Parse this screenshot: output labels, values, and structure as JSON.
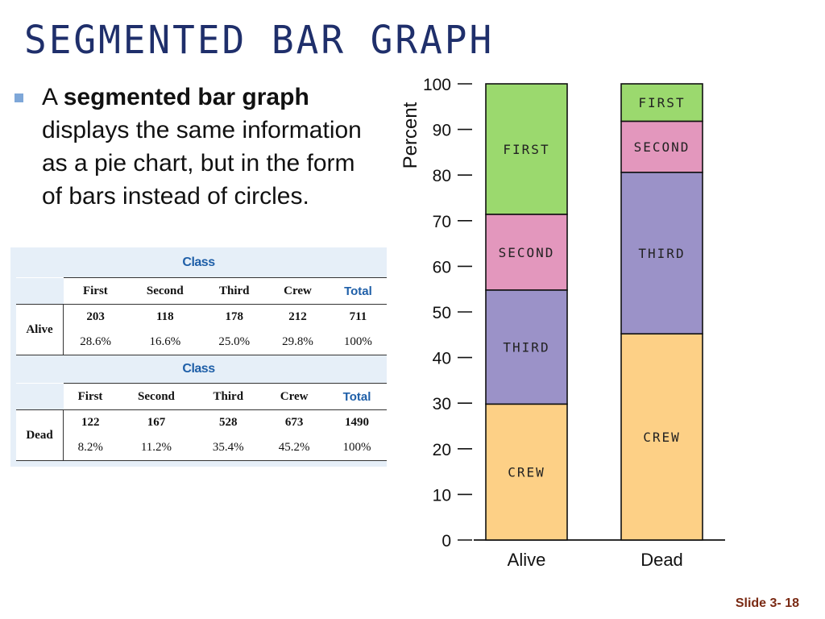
{
  "title": "SEGMENTED BAR GRAPH",
  "bullet": {
    "lead": "A ",
    "bold": "segmented bar graph",
    "rest": " displays the same information as a pie chart, but in the form of bars instead of circles."
  },
  "tables": [
    {
      "heading": "Class",
      "columns": [
        "First",
        "Second",
        "Third",
        "Crew",
        "Total"
      ],
      "row_label": "Alive",
      "counts": [
        "203",
        "118",
        "178",
        "212",
        "711"
      ],
      "percents": [
        "28.6%",
        "16.6%",
        "25.0%",
        "29.8%",
        "100%"
      ]
    },
    {
      "heading": "Class",
      "columns": [
        "First",
        "Second",
        "Third",
        "Crew",
        "Total"
      ],
      "row_label": "Dead",
      "counts": [
        "122",
        "167",
        "528",
        "673",
        "1490"
      ],
      "percents": [
        "8.2%",
        "11.2%",
        "35.4%",
        "45.2%",
        "100%"
      ]
    }
  ],
  "chart_data": {
    "type": "bar",
    "stacked": true,
    "ylabel": "Percent",
    "ylim": [
      0,
      100
    ],
    "yticks": [
      0,
      10,
      20,
      30,
      40,
      50,
      60,
      70,
      80,
      90,
      100
    ],
    "categories": [
      "Alive",
      "Dead"
    ],
    "series": [
      {
        "name": "CREW",
        "values": [
          29.8,
          45.2
        ],
        "color": "#fdd086"
      },
      {
        "name": "THIRD",
        "values": [
          25.0,
          35.4
        ],
        "color": "#9b92c8"
      },
      {
        "name": "SECOND",
        "values": [
          16.6,
          11.2
        ],
        "color": "#e397bd"
      },
      {
        "name": "FIRST",
        "values": [
          28.6,
          8.2
        ],
        "color": "#9bd96e"
      }
    ]
  },
  "slide_number": "Slide 3- 18"
}
